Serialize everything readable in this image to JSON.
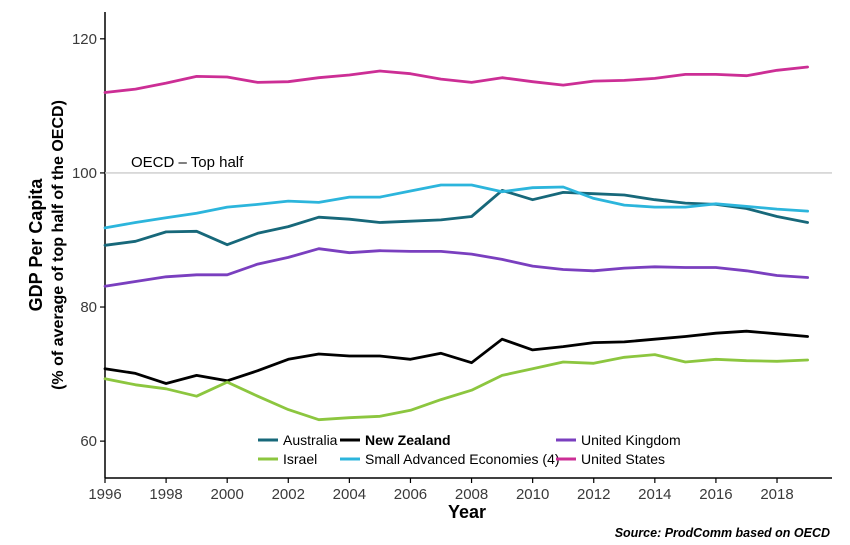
{
  "chart_data": {
    "type": "line",
    "ylabel_line1": "GDP Per Capita",
    "ylabel_line2": "(% of average of top half of the OECD)",
    "xlabel": "Year",
    "source": "Source: ProdComm based on OECD",
    "xlim": [
      1996,
      2019.8
    ],
    "ylim": [
      54.5,
      124
    ],
    "x_ticks": [
      1996,
      1998,
      2000,
      2002,
      2004,
      2006,
      2008,
      2010,
      2012,
      2014,
      2016,
      2018
    ],
    "y_ticks": [
      60,
      80,
      100,
      120
    ],
    "reference_line": {
      "value": 100,
      "label": "OECD – Top half",
      "color": "#cccccc"
    },
    "x": [
      1996,
      1997,
      1998,
      1999,
      2000,
      2001,
      2002,
      2003,
      2004,
      2005,
      2006,
      2007,
      2008,
      2009,
      2010,
      2011,
      2012,
      2013,
      2014,
      2015,
      2016,
      2017,
      2018,
      2019
    ],
    "legend_position": "bottom-inside",
    "grid": false,
    "series": [
      {
        "name": "Australia",
        "color": "#17687a",
        "bold": false,
        "values": [
          89.2,
          89.8,
          91.2,
          91.3,
          89.3,
          91.0,
          92.0,
          93.4,
          93.1,
          92.6,
          92.8,
          93.0,
          93.5,
          97.4,
          96.0,
          97.1,
          96.9,
          96.7,
          96.0,
          95.5,
          95.3,
          94.7,
          93.5,
          92.6
        ]
      },
      {
        "name": "New Zealand",
        "color": "#000000",
        "bold": true,
        "values": [
          70.8,
          70.1,
          68.6,
          69.8,
          69.0,
          70.5,
          72.2,
          73.0,
          72.7,
          72.7,
          72.2,
          73.1,
          71.7,
          75.2,
          73.6,
          74.1,
          74.7,
          74.8,
          75.2,
          75.6,
          76.1,
          76.4,
          76.0,
          75.6
        ]
      },
      {
        "name": "United Kingdom",
        "color": "#7a3fbf",
        "bold": false,
        "values": [
          83.1,
          83.8,
          84.5,
          84.8,
          84.8,
          86.4,
          87.4,
          88.7,
          88.1,
          88.4,
          88.3,
          88.3,
          87.9,
          87.1,
          86.1,
          85.6,
          85.4,
          85.8,
          86.0,
          85.9,
          85.9,
          85.4,
          84.7,
          84.4
        ]
      },
      {
        "name": "Israel",
        "color": "#8cc63f",
        "bold": false,
        "values": [
          69.3,
          68.4,
          67.8,
          66.7,
          68.8,
          66.7,
          64.7,
          63.2,
          63.5,
          63.7,
          64.6,
          66.2,
          67.6,
          69.8,
          70.8,
          71.8,
          71.6,
          72.5,
          72.9,
          71.8,
          72.2,
          72.0,
          71.9,
          72.1
        ]
      },
      {
        "name": "Small Advanced Economies (4)",
        "color": "#2cb5dc",
        "bold": false,
        "values": [
          91.8,
          92.6,
          93.3,
          94.0,
          94.9,
          95.3,
          95.8,
          95.6,
          96.4,
          96.4,
          97.3,
          98.2,
          98.2,
          97.2,
          97.8,
          97.9,
          96.2,
          95.2,
          94.9,
          94.9,
          95.4,
          95.0,
          94.6,
          94.3
        ]
      },
      {
        "name": "United States",
        "color": "#cc2e95",
        "bold": false,
        "values": [
          112.0,
          112.5,
          113.4,
          114.4,
          114.3,
          113.5,
          113.6,
          114.2,
          114.6,
          115.2,
          114.8,
          114.0,
          113.5,
          114.2,
          113.6,
          113.1,
          113.7,
          113.8,
          114.1,
          114.7,
          114.7,
          114.5,
          115.3,
          115.8
        ]
      }
    ]
  }
}
